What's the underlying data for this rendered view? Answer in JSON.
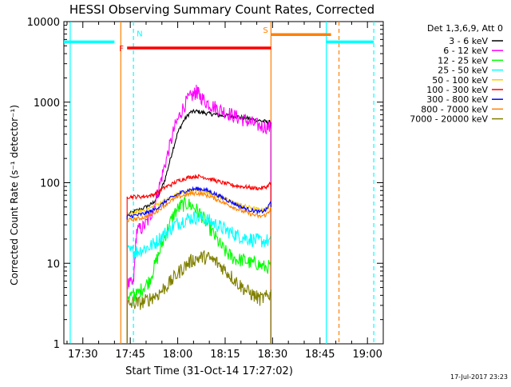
{
  "chart_data": {
    "type": "line",
    "title": "HESSI Observing Summary Count Rates, Corrected",
    "xlabel": "Start Time (31-Oct-14 17:27:02)",
    "ylabel": "Corrected Count Rate (s⁻¹ detector⁻¹)",
    "yscale": "log",
    "xlim_minutes": [
      -3,
      98
    ],
    "ylim": [
      1,
      10000
    ],
    "x_ticks": [
      {
        "t": 3,
        "label": "17:30"
      },
      {
        "t": 18,
        "label": "17:45"
      },
      {
        "t": 33,
        "label": "18:00"
      },
      {
        "t": 48,
        "label": "18:15"
      },
      {
        "t": 63,
        "label": "18:30"
      },
      {
        "t": 78,
        "label": "18:45"
      },
      {
        "t": 93,
        "label": "19:00"
      }
    ],
    "y_ticks": [
      {
        "v": 1,
        "label": "1"
      },
      {
        "v": 10,
        "label": "10"
      },
      {
        "v": 100,
        "label": "100"
      },
      {
        "v": 1000,
        "label": "1000"
      },
      {
        "v": 10000,
        "label": "10000"
      }
    ],
    "legend_title": "Det 1,3,6,9, Att 0",
    "legend_position": "right",
    "series": [
      {
        "name": "3 - 6 keV",
        "color": "#000000",
        "points": [
          [
            17,
            40
          ],
          [
            20,
            45
          ],
          [
            23,
            50
          ],
          [
            25,
            55
          ],
          [
            27,
            70
          ],
          [
            29,
            110
          ],
          [
            31,
            220
          ],
          [
            33,
            420
          ],
          [
            35,
            600
          ],
          [
            37,
            750
          ],
          [
            39,
            770
          ],
          [
            41,
            740
          ],
          [
            43,
            720
          ],
          [
            45,
            700
          ],
          [
            47,
            680
          ],
          [
            49,
            680
          ],
          [
            51,
            670
          ],
          [
            53,
            650
          ],
          [
            55,
            630
          ],
          [
            57,
            610
          ],
          [
            59,
            590
          ],
          [
            61,
            570
          ],
          [
            62.5,
            560
          ]
        ]
      },
      {
        "name": "6 - 12 keV",
        "color": "#ff00ff",
        "points": [
          [
            17,
            5.5
          ],
          [
            19,
            5.5
          ],
          [
            20,
            25
          ],
          [
            22,
            28
          ],
          [
            24,
            35
          ],
          [
            26,
            60
          ],
          [
            28,
            120
          ],
          [
            30,
            240
          ],
          [
            32,
            480
          ],
          [
            34,
            750
          ],
          [
            36,
            1050
          ],
          [
            38,
            1250
          ],
          [
            39,
            1350
          ],
          [
            40,
            1200
          ],
          [
            42,
            1000
          ],
          [
            44,
            900
          ],
          [
            46,
            820
          ],
          [
            48,
            760
          ],
          [
            50,
            700
          ],
          [
            52,
            640
          ],
          [
            54,
            600
          ],
          [
            56,
            560
          ],
          [
            58,
            520
          ],
          [
            60,
            500
          ],
          [
            62.5,
            480
          ]
        ]
      },
      {
        "name": "12 - 25 keV",
        "color": "#00ff00",
        "points": [
          [
            17,
            4
          ],
          [
            19,
            4
          ],
          [
            20,
            4
          ],
          [
            22,
            5
          ],
          [
            24,
            6
          ],
          [
            26,
            10
          ],
          [
            28,
            17
          ],
          [
            30,
            28
          ],
          [
            32,
            42
          ],
          [
            34,
            52
          ],
          [
            36,
            55
          ],
          [
            38,
            50
          ],
          [
            40,
            42
          ],
          [
            42,
            32
          ],
          [
            44,
            24
          ],
          [
            46,
            18
          ],
          [
            48,
            14
          ],
          [
            50,
            12
          ],
          [
            52,
            11
          ],
          [
            54,
            11
          ],
          [
            56,
            10
          ],
          [
            58,
            10
          ],
          [
            60,
            9
          ],
          [
            62.5,
            9
          ]
        ]
      },
      {
        "name": "25 - 50 keV",
        "color": "#00ffff",
        "points": [
          [
            17,
            14
          ],
          [
            19,
            14
          ],
          [
            20,
            14
          ],
          [
            22,
            15
          ],
          [
            24,
            16
          ],
          [
            26,
            18
          ],
          [
            28,
            22
          ],
          [
            30,
            25
          ],
          [
            32,
            30
          ],
          [
            34,
            33
          ],
          [
            36,
            36
          ],
          [
            38,
            37
          ],
          [
            40,
            37
          ],
          [
            42,
            35
          ],
          [
            44,
            32
          ],
          [
            46,
            29
          ],
          [
            48,
            26
          ],
          [
            50,
            24
          ],
          [
            52,
            22
          ],
          [
            54,
            21
          ],
          [
            56,
            20
          ],
          [
            58,
            19
          ],
          [
            60,
            19
          ],
          [
            62.5,
            19
          ]
        ]
      },
      {
        "name": "50 - 100 keV",
        "color": "#ffcc00",
        "points": [
          [
            17,
            40
          ],
          [
            19,
            42
          ],
          [
            21,
            44
          ],
          [
            23,
            46
          ],
          [
            25,
            50
          ],
          [
            27,
            55
          ],
          [
            29,
            60
          ],
          [
            31,
            66
          ],
          [
            33,
            72
          ],
          [
            35,
            76
          ],
          [
            37,
            80
          ],
          [
            39,
            80
          ],
          [
            41,
            78
          ],
          [
            43,
            74
          ],
          [
            45,
            70
          ],
          [
            47,
            65
          ],
          [
            49,
            60
          ],
          [
            51,
            56
          ],
          [
            53,
            53
          ],
          [
            55,
            50
          ],
          [
            57,
            48
          ],
          [
            59,
            46
          ],
          [
            61,
            47
          ],
          [
            62.5,
            52
          ]
        ]
      },
      {
        "name": "100 - 300 keV",
        "color": "#ff0000",
        "points": [
          [
            17,
            67
          ],
          [
            19,
            67
          ],
          [
            21,
            67
          ],
          [
            23,
            68
          ],
          [
            25,
            70
          ],
          [
            27,
            78
          ],
          [
            29,
            88
          ],
          [
            31,
            95
          ],
          [
            33,
            105
          ],
          [
            35,
            112
          ],
          [
            37,
            118
          ],
          [
            39,
            120
          ],
          [
            41,
            118
          ],
          [
            43,
            112
          ],
          [
            45,
            106
          ],
          [
            47,
            100
          ],
          [
            49,
            96
          ],
          [
            51,
            92
          ],
          [
            53,
            90
          ],
          [
            55,
            88
          ],
          [
            57,
            86
          ],
          [
            59,
            85
          ],
          [
            61,
            88
          ],
          [
            62.5,
            100
          ]
        ]
      },
      {
        "name": "300 - 800 keV",
        "color": "#0000ff",
        "points": [
          [
            17,
            38
          ],
          [
            19,
            39
          ],
          [
            21,
            40
          ],
          [
            23,
            42
          ],
          [
            25,
            45
          ],
          [
            27,
            50
          ],
          [
            29,
            58
          ],
          [
            31,
            65
          ],
          [
            33,
            72
          ],
          [
            35,
            78
          ],
          [
            37,
            82
          ],
          [
            39,
            84
          ],
          [
            41,
            83
          ],
          [
            43,
            78
          ],
          [
            45,
            72
          ],
          [
            47,
            66
          ],
          [
            49,
            60
          ],
          [
            51,
            55
          ],
          [
            53,
            50
          ],
          [
            55,
            47
          ],
          [
            57,
            45
          ],
          [
            59,
            43
          ],
          [
            61,
            46
          ],
          [
            62.5,
            58
          ]
        ]
      },
      {
        "name": "800 - 7000 keV",
        "color": "#ff8000",
        "points": [
          [
            17,
            34
          ],
          [
            19,
            35
          ],
          [
            21,
            36
          ],
          [
            23,
            38
          ],
          [
            25,
            41
          ],
          [
            27,
            46
          ],
          [
            29,
            53
          ],
          [
            31,
            60
          ],
          [
            33,
            66
          ],
          [
            35,
            70
          ],
          [
            37,
            73
          ],
          [
            39,
            74
          ],
          [
            41,
            72
          ],
          [
            43,
            68
          ],
          [
            45,
            63
          ],
          [
            47,
            58
          ],
          [
            49,
            53
          ],
          [
            51,
            49
          ],
          [
            53,
            45
          ],
          [
            55,
            42
          ],
          [
            57,
            40
          ],
          [
            59,
            38
          ],
          [
            61,
            40
          ],
          [
            62.5,
            48
          ]
        ]
      },
      {
        "name": "7000 - 20000 keV",
        "color": "#808000",
        "points": [
          [
            17,
            3
          ],
          [
            19,
            3.2
          ],
          [
            21,
            3.2
          ],
          [
            23,
            3.4
          ],
          [
            25,
            3.8
          ],
          [
            27,
            4.2
          ],
          [
            29,
            5
          ],
          [
            31,
            6
          ],
          [
            33,
            7.5
          ],
          [
            35,
            9
          ],
          [
            37,
            10.5
          ],
          [
            39,
            11.5
          ],
          [
            41,
            12
          ],
          [
            43,
            11.5
          ],
          [
            45,
            10.5
          ],
          [
            47,
            9
          ],
          [
            49,
            7.5
          ],
          [
            51,
            6.2
          ],
          [
            53,
            5.2
          ],
          [
            55,
            4.5
          ],
          [
            57,
            4
          ],
          [
            59,
            3.6
          ],
          [
            61,
            3.8
          ],
          [
            62.5,
            4.2
          ]
        ]
      }
    ],
    "flag_bars": [
      {
        "label": "N",
        "color": "#00ffff",
        "t_start": -3,
        "t_end": 13,
        "level": 5600
      },
      {
        "label": "F",
        "color": "#ff0000",
        "t_start": 17,
        "t_end": 62.5,
        "level": 4700
      },
      {
        "label": "S",
        "color": "#ff8000",
        "t_start": 62.5,
        "t_end": 81.5,
        "level": 6900
      },
      {
        "label": "",
        "color": "#00ffff",
        "t_start": 80,
        "t_end": 95,
        "level": 5600
      }
    ],
    "vertical_lines": [
      {
        "t": -1,
        "color": "#00ffff",
        "style": "solid"
      },
      {
        "t": 19,
        "color": "#00ffff",
        "style": "dashed"
      },
      {
        "t": 15,
        "color": "#ff8000",
        "style": "solid"
      },
      {
        "t": 62.5,
        "color": "#ff8000",
        "style": "solid"
      },
      {
        "t": 80,
        "color": "#00ffff",
        "style": "solid"
      },
      {
        "t": 84,
        "color": "#ff8000",
        "style": "dashed"
      },
      {
        "t": 95,
        "color": "#00ffff",
        "style": "dashed"
      }
    ]
  },
  "footer": {
    "date_stamp": "17-Jul-2017 23:23"
  }
}
